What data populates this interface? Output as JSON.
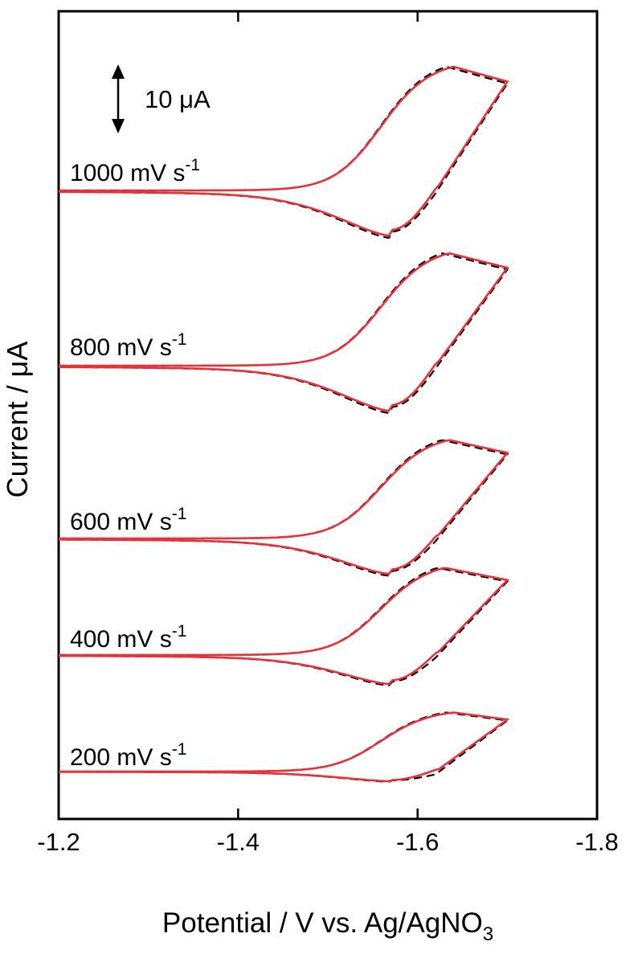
{
  "chart_data": {
    "type": "line",
    "xlabel": "Potential / V vs. Ag/AgNO",
    "xlabel_sub": "3",
    "ylabel": "Current / μA",
    "xlim": [
      -1.2,
      -1.8
    ],
    "x_reversed": true,
    "x_ticks": [
      {
        "value": -1.2,
        "label": "-1.2"
      },
      {
        "value": -1.4,
        "label": "-1.4"
      },
      {
        "value": -1.6,
        "label": "-1.6"
      },
      {
        "value": -1.8,
        "label": "-1.8"
      }
    ],
    "y_ticks": "none",
    "scale_bar": {
      "label": "10 μA",
      "value": 10,
      "unit": "μA"
    },
    "grid": false,
    "legend": "none",
    "colors": {
      "red": "#e8323a",
      "black": "#000000"
    },
    "series": [
      {
        "scan_rate_label": "1000 mV s",
        "superscript": "-1",
        "scan_rate": 1000,
        "baseline_current": 0,
        "ox_peak": [
          -1.64,
          22
        ],
        "red_peak": [
          -1.57,
          -7
        ],
        "vertex": -1.7
      },
      {
        "scan_rate_label": "800 mV s",
        "superscript": "-1",
        "scan_rate": 800,
        "baseline_current": 0,
        "ox_peak": [
          -1.635,
          20
        ],
        "red_peak": [
          -1.57,
          -7
        ],
        "vertex": -1.7
      },
      {
        "scan_rate_label": "600 mV s",
        "superscript": "-1",
        "scan_rate": 600,
        "baseline_current": 0,
        "ox_peak": [
          -1.635,
          17.5
        ],
        "red_peak": [
          -1.57,
          -5.5
        ],
        "vertex": -1.7
      },
      {
        "scan_rate_label": "400 mV s",
        "superscript": "-1",
        "scan_rate": 400,
        "baseline_current": 0,
        "ox_peak": [
          -1.63,
          15.5
        ],
        "red_peak": [
          -1.57,
          -4.5
        ],
        "vertex": -1.7
      },
      {
        "scan_rate_label": "200 mV s",
        "superscript": "-1",
        "scan_rate": 200,
        "baseline_current": 0,
        "ox_peak": [
          -1.64,
          10.5
        ],
        "red_peak": [
          -1.57,
          -1.5
        ],
        "vertex": -1.7
      }
    ]
  }
}
